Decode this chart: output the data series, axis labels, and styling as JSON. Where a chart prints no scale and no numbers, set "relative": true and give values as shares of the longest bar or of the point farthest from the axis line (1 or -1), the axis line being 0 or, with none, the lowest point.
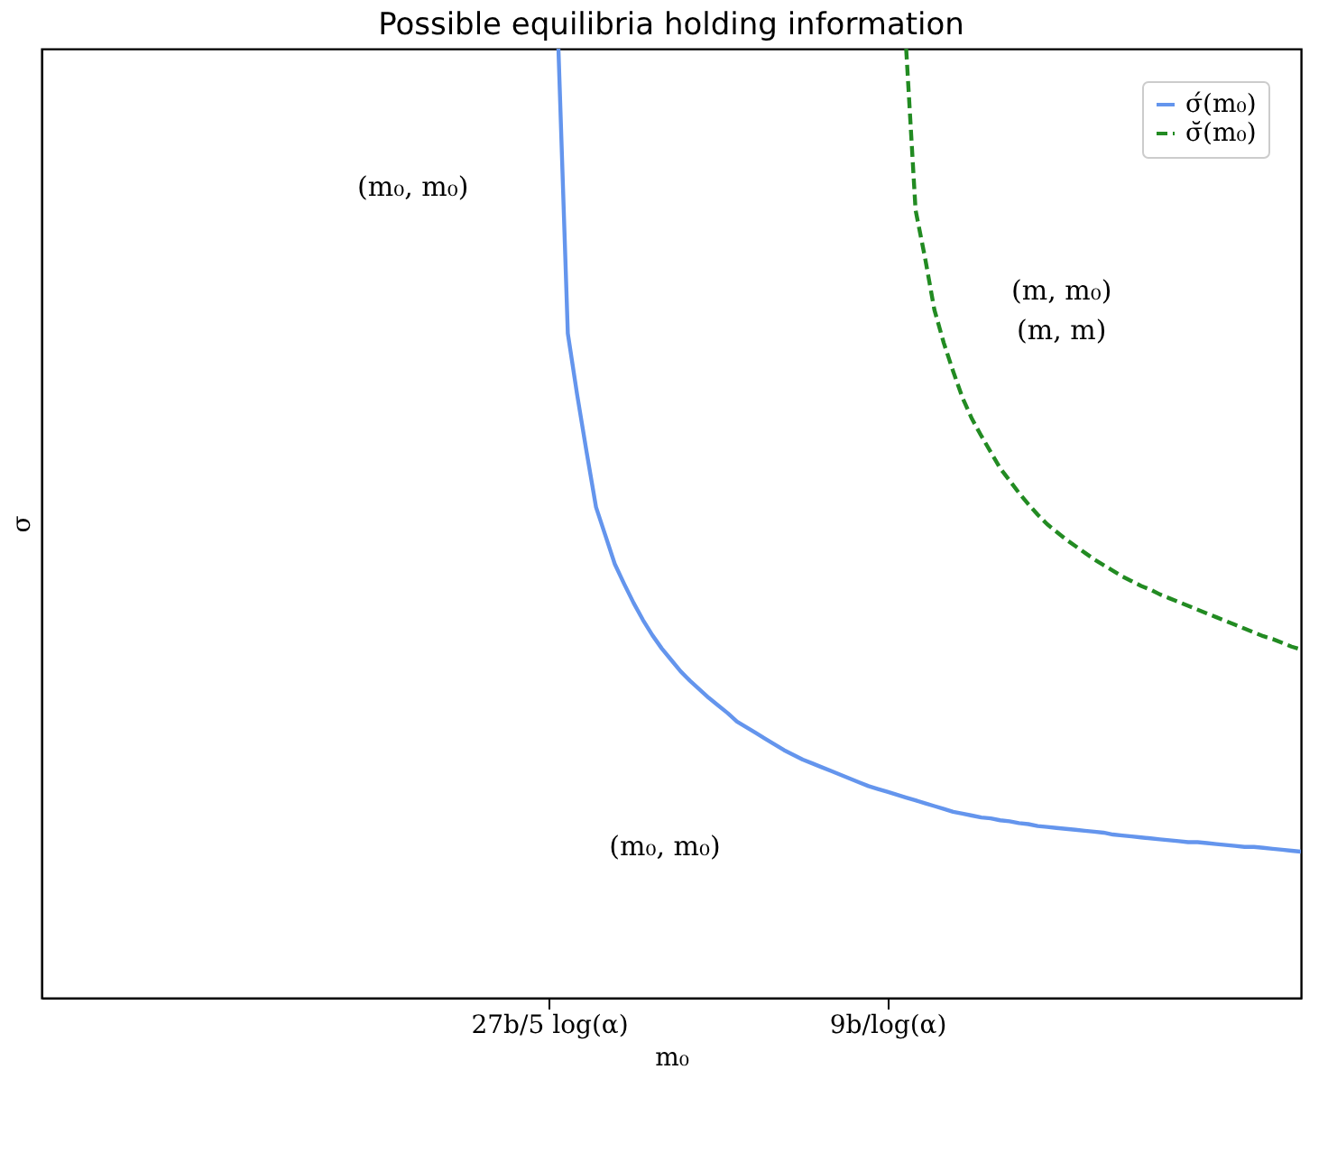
{
  "chart_data": {
    "type": "line",
    "title": "Possible equilibria holding information",
    "xlabel": "m₀",
    "ylabel": "σ",
    "relative": true,
    "categories": [
      null,
      null,
      null,
      null,
      null,
      null,
      null,
      null,
      null,
      null,
      null,
      null,
      null,
      null,
      null,
      null,
      null,
      null,
      null,
      null,
      null,
      null,
      null,
      null,
      null,
      null,
      null,
      null,
      null,
      null,
      null,
      null,
      null,
      null,
      null,
      null,
      null,
      null,
      null,
      null,
      null,
      null,
      null,
      null,
      null,
      null,
      null,
      null,
      null,
      null,
      null,
      null,
      null,
      null,
      "27b/5 log(α)",
      null,
      null,
      null,
      null,
      null,
      null,
      null,
      null,
      null,
      null,
      null,
      null,
      null,
      null,
      null,
      null,
      null,
      null,
      null,
      null,
      null,
      null,
      null,
      null,
      null,
      null,
      null,
      null,
      null,
      null,
      null,
      null,
      null,
      null,
      null,
      "9b/log(α)",
      null,
      null,
      null,
      null,
      null,
      null,
      null,
      null,
      null,
      null,
      null,
      null,
      null,
      null,
      null,
      null,
      null,
      null,
      null,
      null,
      null,
      null,
      null,
      null,
      null,
      null,
      null,
      null,
      null,
      null,
      null,
      null,
      null,
      null,
      null,
      null,
      null,
      null,
      null,
      null,
      null,
      null,
      null,
      null
    ],
    "series": [
      {
        "name": "σ́(m₀)",
        "color": "#6495ed",
        "line_style": "solid",
        "values": [
          null,
          null,
          null,
          null,
          null,
          null,
          null,
          null,
          null,
          null,
          null,
          null,
          null,
          null,
          null,
          null,
          null,
          null,
          null,
          null,
          null,
          null,
          null,
          null,
          null,
          null,
          null,
          null,
          null,
          null,
          null,
          null,
          null,
          null,
          null,
          null,
          null,
          null,
          null,
          null,
          null,
          null,
          null,
          null,
          null,
          null,
          null,
          null,
          null,
          null,
          null,
          null,
          null,
          null,
          null,
          1.0,
          0.7,
          0.635,
          0.575,
          0.517,
          0.487,
          0.457,
          0.436,
          0.416,
          0.398,
          0.382,
          0.368,
          0.356,
          0.344,
          0.334,
          0.325,
          0.316,
          0.308,
          0.3,
          0.291,
          0.285,
          0.279,
          0.273,
          0.267,
          0.261,
          0.256,
          0.251,
          0.247,
          0.243,
          0.239,
          0.235,
          0.231,
          0.227,
          0.223,
          0.22,
          0.217,
          0.214,
          0.211,
          0.208,
          0.205,
          0.202,
          0.199,
          0.196,
          0.194,
          0.192,
          0.19,
          0.189,
          0.187,
          0.186,
          0.184,
          0.183,
          0.181,
          0.18,
          0.179,
          0.178,
          0.177,
          0.176,
          0.175,
          0.174,
          0.172,
          0.171,
          0.17,
          0.169,
          0.168,
          0.167,
          0.166,
          0.165,
          0.164,
          0.164,
          0.163,
          0.162,
          0.161,
          0.16,
          0.159,
          0.159,
          0.158,
          0.157,
          0.156,
          0.155,
          0.154
        ]
      },
      {
        "name": "σ̆(m₀)",
        "color": "#228b22",
        "line_style": "dashed",
        "values": [
          null,
          null,
          null,
          null,
          null,
          null,
          null,
          null,
          null,
          null,
          null,
          null,
          null,
          null,
          null,
          null,
          null,
          null,
          null,
          null,
          null,
          null,
          null,
          null,
          null,
          null,
          null,
          null,
          null,
          null,
          null,
          null,
          null,
          null,
          null,
          null,
          null,
          null,
          null,
          null,
          null,
          null,
          null,
          null,
          null,
          null,
          null,
          null,
          null,
          null,
          null,
          null,
          null,
          null,
          null,
          null,
          null,
          null,
          null,
          null,
          null,
          null,
          null,
          null,
          null,
          null,
          null,
          null,
          null,
          null,
          null,
          null,
          null,
          null,
          null,
          null,
          null,
          null,
          null,
          null,
          null,
          null,
          null,
          null,
          null,
          null,
          null,
          null,
          null,
          null,
          null,
          null,
          1.0,
          0.83,
          0.78,
          0.725,
          0.69,
          0.66,
          0.632,
          0.61,
          0.592,
          0.575,
          0.558,
          0.545,
          0.532,
          0.52,
          0.509,
          0.499,
          0.491,
          0.483,
          0.476,
          0.469,
          0.462,
          0.456,
          0.45,
          0.444,
          0.439,
          0.434,
          0.43,
          0.425,
          0.421,
          0.417,
          0.413,
          0.409,
          0.405,
          0.401,
          0.397,
          0.393,
          0.389,
          0.385,
          0.381,
          0.378,
          0.374,
          0.37,
          0.367
        ]
      }
    ],
    "annotations": [
      "(m₀, m₀)",
      "(m, m₀)\n(m, m)",
      "(m₀, m₀)"
    ],
    "legend": "top right",
    "grid": false,
    "marker": "none"
  }
}
